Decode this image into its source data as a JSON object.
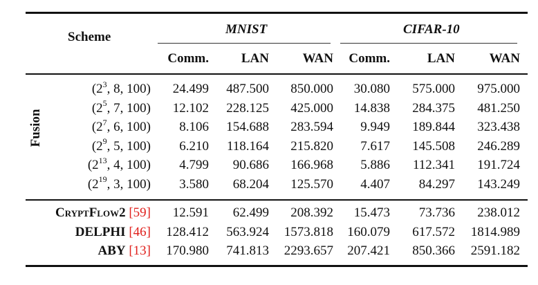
{
  "table": {
    "scheme_header": "Scheme",
    "datasets": [
      "MNIST",
      "CIFAR-10"
    ],
    "subcolumns": [
      "Comm.",
      "LAN",
      "WAN",
      "Comm.",
      "LAN",
      "WAN"
    ],
    "group_label": "Fusion",
    "fusion_rows": [
      {
        "base": "2",
        "exp": "3",
        "rest": ", 8, 100)",
        "values": [
          "24.499",
          "487.500",
          "850.000",
          "30.080",
          "575.000",
          "975.000"
        ]
      },
      {
        "base": "2",
        "exp": "5",
        "rest": ", 7, 100)",
        "values": [
          "12.102",
          "228.125",
          "425.000",
          "14.838",
          "284.375",
          "481.250"
        ]
      },
      {
        "base": "2",
        "exp": "7",
        "rest": ", 6, 100)",
        "values": [
          "8.106",
          "154.688",
          "283.594",
          "9.949",
          "189.844",
          "323.438"
        ]
      },
      {
        "base": "2",
        "exp": "9",
        "rest": ", 5, 100)",
        "values": [
          "6.210",
          "118.164",
          "215.820",
          "7.617",
          "145.508",
          "246.289"
        ]
      },
      {
        "base": "2",
        "exp": "13",
        "rest": ", 4, 100)",
        "values": [
          "4.799",
          "90.686",
          "166.968",
          "5.886",
          "112.341",
          "191.724"
        ]
      },
      {
        "base": "2",
        "exp": "19",
        "rest": ", 3, 100)",
        "values": [
          "3.580",
          "68.204",
          "125.570",
          "4.407",
          "84.297",
          "143.249"
        ]
      }
    ],
    "baselines": [
      {
        "name": "CryptFlow2",
        "cite": "[59]",
        "values": [
          "12.591",
          "62.499",
          "208.392",
          "15.473",
          "73.736",
          "238.012"
        ]
      },
      {
        "name": "DELPHI",
        "cite": "[46]",
        "values": [
          "128.412",
          "563.924",
          "1573.818",
          "160.079",
          "617.572",
          "1814.989"
        ]
      },
      {
        "name": "ABY",
        "cite": "[13]",
        "values": [
          "170.980",
          "741.813",
          "2293.657",
          "207.421",
          "850.366",
          "2591.182"
        ]
      }
    ]
  }
}
